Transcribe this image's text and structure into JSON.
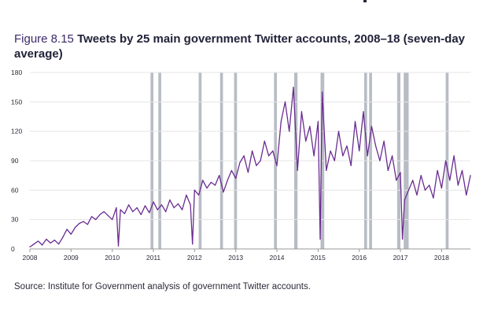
{
  "figure": {
    "number": "Figure 8.15",
    "title": "Tweets by 25 main government Twitter accounts, 2008–18 (seven-day average)"
  },
  "source": "Source: Institute for Government analysis of government Twitter accounts.",
  "colors": {
    "line": "#6a2c91",
    "bands": "#b8bcc4",
    "axis": "#999999",
    "grid": "#e4e4e4",
    "text": "#2a2a3a"
  },
  "chart_data": {
    "type": "line",
    "title": "Tweets by 25 main government Twitter accounts, 2008–18 (seven-day average)",
    "xlabel": "",
    "ylabel": "",
    "xlim": [
      2008,
      2018.7
    ],
    "ylim": [
      0,
      180
    ],
    "yticks": [
      0,
      30,
      60,
      90,
      120,
      150,
      180
    ],
    "xticks": [
      "2008",
      "2009",
      "2010",
      "2011",
      "2012",
      "2013",
      "2014",
      "2015",
      "2016",
      "2017",
      "2018"
    ],
    "grid": true,
    "shaded_periods": [
      [
        2010.93,
        2011.0
      ],
      [
        2011.12,
        2011.19
      ],
      [
        2012.1,
        2012.17
      ],
      [
        2012.62,
        2012.69
      ],
      [
        2012.96,
        2013.03
      ],
      [
        2013.93,
        2014.0
      ],
      [
        2014.42,
        2014.5
      ],
      [
        2015.06,
        2015.15
      ],
      [
        2016.12,
        2016.19
      ],
      [
        2016.24,
        2016.31
      ],
      [
        2016.92,
        2017.0
      ],
      [
        2017.08,
        2017.2
      ],
      [
        2018.1,
        2018.17
      ]
    ],
    "series": [
      {
        "name": "",
        "x": [
          2008.0,
          2008.1,
          2008.2,
          2008.3,
          2008.4,
          2008.5,
          2008.6,
          2008.7,
          2008.8,
          2008.9,
          2009.0,
          2009.1,
          2009.2,
          2009.3,
          2009.4,
          2009.5,
          2009.6,
          2009.7,
          2009.8,
          2009.9,
          2010.0,
          2010.1,
          2010.15,
          2010.2,
          2010.3,
          2010.4,
          2010.5,
          2010.6,
          2010.7,
          2010.8,
          2010.9,
          2011.0,
          2011.1,
          2011.2,
          2011.3,
          2011.4,
          2011.5,
          2011.6,
          2011.7,
          2011.8,
          2011.9,
          2011.95,
          2012.0,
          2012.1,
          2012.2,
          2012.3,
          2012.4,
          2012.5,
          2012.6,
          2012.7,
          2012.8,
          2012.9,
          2013.0,
          2013.1,
          2013.2,
          2013.3,
          2013.4,
          2013.5,
          2013.6,
          2013.7,
          2013.8,
          2013.9,
          2014.0,
          2014.1,
          2014.2,
          2014.3,
          2014.4,
          2014.5,
          2014.6,
          2014.7,
          2014.8,
          2014.9,
          2015.0,
          2015.05,
          2015.1,
          2015.2,
          2015.3,
          2015.4,
          2015.5,
          2015.6,
          2015.7,
          2015.8,
          2015.9,
          2016.0,
          2016.1,
          2016.2,
          2016.3,
          2016.4,
          2016.5,
          2016.6,
          2016.7,
          2016.8,
          2016.9,
          2017.0,
          2017.05,
          2017.1,
          2017.2,
          2017.3,
          2017.4,
          2017.5,
          2017.6,
          2017.7,
          2017.8,
          2017.9,
          2018.0,
          2018.1,
          2018.2,
          2018.3,
          2018.4,
          2018.5,
          2018.6,
          2018.7
        ],
        "values": [
          2,
          5,
          8,
          4,
          10,
          6,
          9,
          5,
          12,
          20,
          15,
          22,
          26,
          28,
          25,
          33,
          30,
          35,
          38,
          34,
          30,
          42,
          3,
          40,
          36,
          45,
          38,
          42,
          35,
          44,
          37,
          48,
          40,
          45,
          38,
          50,
          42,
          46,
          40,
          55,
          45,
          5,
          60,
          55,
          70,
          62,
          68,
          65,
          75,
          58,
          70,
          80,
          72,
          88,
          95,
          78,
          100,
          85,
          90,
          110,
          95,
          100,
          85,
          130,
          150,
          120,
          165,
          80,
          140,
          110,
          125,
          95,
          130,
          10,
          160,
          80,
          100,
          90,
          120,
          95,
          105,
          85,
          130,
          100,
          140,
          95,
          125,
          105,
          90,
          110,
          80,
          95,
          70,
          78,
          10,
          50,
          60,
          70,
          55,
          75,
          60,
          65,
          52,
          80,
          62,
          90,
          70,
          95,
          65,
          80,
          55,
          75
        ]
      }
    ]
  }
}
